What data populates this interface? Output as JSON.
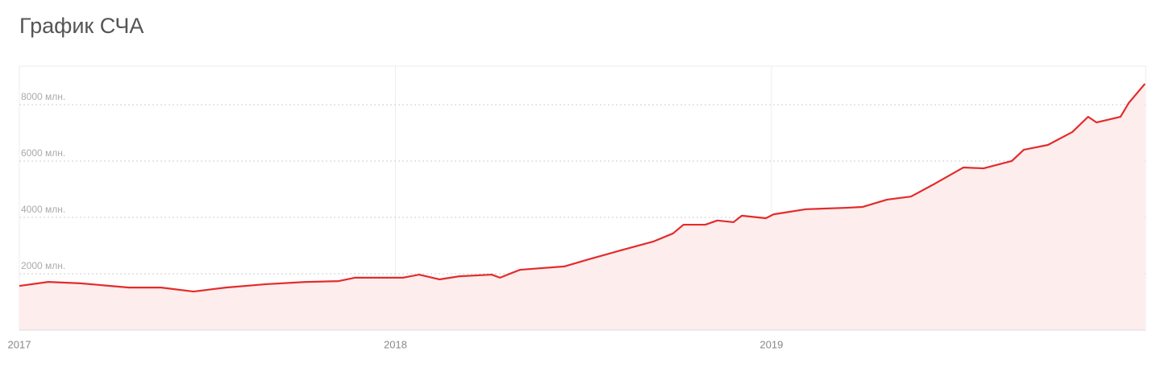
{
  "chart_data": {
    "type": "area",
    "title": "График СЧА",
    "color": "#e42b2b",
    "fill": "#fdeded",
    "grid": true,
    "x": [
      2017.0,
      2017.077,
      2017.163,
      2017.292,
      2017.377,
      2017.463,
      2017.549,
      2017.656,
      2017.763,
      2017.849,
      2017.892,
      2018.02,
      2018.063,
      2018.117,
      2018.17,
      2018.256,
      2018.278,
      2018.331,
      2018.449,
      2018.513,
      2018.599,
      2018.685,
      2018.738,
      2018.766,
      2018.824,
      2018.856,
      2018.899,
      2018.921,
      2018.985,
      2019.006,
      2019.092,
      2019.199,
      2019.242,
      2019.307,
      2019.371,
      2019.435,
      2019.51,
      2019.564,
      2019.639,
      2019.671,
      2019.735,
      2019.8,
      2019.842,
      2019.864,
      2019.928,
      2019.95,
      2019.993
    ],
    "values": [
      1570,
      1710,
      1660,
      1510,
      1510,
      1370,
      1510,
      1630,
      1710,
      1740,
      1860,
      1860,
      1970,
      1800,
      1910,
      1970,
      1860,
      2140,
      2260,
      2510,
      2830,
      3140,
      3430,
      3740,
      3740,
      3890,
      3830,
      4060,
      3970,
      4110,
      4290,
      4340,
      4370,
      4630,
      4740,
      5200,
      5770,
      5740,
      6000,
      6400,
      6570,
      7030,
      7570,
      7370,
      7570,
      8060,
      8740
    ],
    "xlim": [
      2017,
      2019.995
    ],
    "xticks": [
      2017,
      2018,
      2019
    ],
    "ylim": [
      0,
      9370
    ],
    "yticks": [
      0,
      {
        "value": 2000,
        "label": "2000 млн."
      },
      {
        "value": 4000,
        "label": "4000 млн."
      },
      {
        "value": 6000,
        "label": "6000 млн."
      },
      {
        "value": 8000,
        "label": "8000 млн."
      }
    ]
  }
}
